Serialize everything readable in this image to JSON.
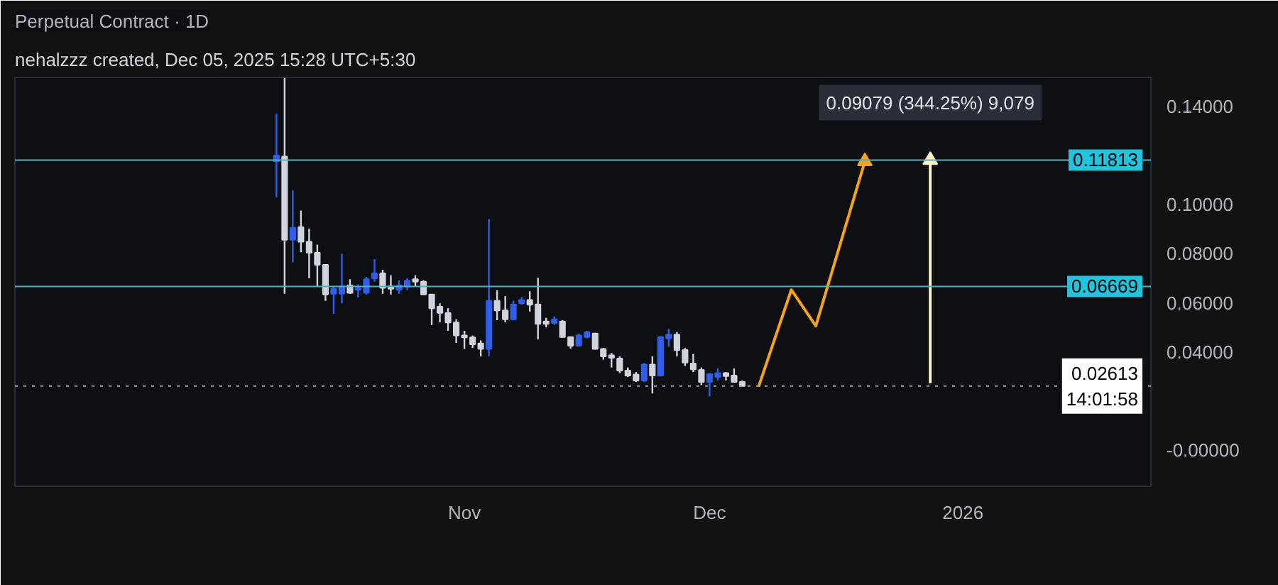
{
  "chart_data": {
    "type": "candlestick",
    "title": "Perpetual Contract · 1D",
    "annotations": [
      "nehalzzz created, Dec 05, 2025 15:28 UTC+5:30",
      "0.09079 (344.25%) 9,079"
    ],
    "x": [
      "2025-10-09",
      "2025-10-10",
      "2025-10-11",
      "2025-10-12",
      "2025-10-13",
      "2025-10-14",
      "2025-10-15",
      "2025-10-16",
      "2025-10-17",
      "2025-10-18",
      "2025-10-19",
      "2025-10-20",
      "2025-10-21",
      "2025-10-22",
      "2025-10-23",
      "2025-10-24",
      "2025-10-25",
      "2025-10-26",
      "2025-10-27",
      "2025-10-28",
      "2025-10-29",
      "2025-10-30",
      "2025-10-31",
      "2025-11-01",
      "2025-11-02",
      "2025-11-03",
      "2025-11-04",
      "2025-11-05",
      "2025-11-06",
      "2025-11-07",
      "2025-11-08",
      "2025-11-09",
      "2025-11-10",
      "2025-11-11",
      "2025-11-12",
      "2025-11-13",
      "2025-11-14",
      "2025-11-15",
      "2025-11-16",
      "2025-11-17",
      "2025-11-18",
      "2025-11-19",
      "2025-11-20",
      "2025-11-21",
      "2025-11-22",
      "2025-11-23",
      "2025-11-24",
      "2025-11-25",
      "2025-11-26",
      "2025-11-27",
      "2025-11-28",
      "2025-11-29",
      "2025-11-30",
      "2025-12-01",
      "2025-12-02",
      "2025-12-03",
      "2025-12-04",
      "2025-12-05"
    ],
    "ohlc": [
      [
        0.1176,
        0.137,
        0.103,
        0.12
      ],
      [
        0.1196,
        0.1516,
        0.0637,
        0.0857
      ],
      [
        0.0857,
        0.1059,
        0.0765,
        0.0906
      ],
      [
        0.0908,
        0.0976,
        0.0806,
        0.0849
      ],
      [
        0.0849,
        0.0902,
        0.07,
        0.0804
      ],
      [
        0.0804,
        0.0837,
        0.0667,
        0.0755
      ],
      [
        0.0755,
        0.0755,
        0.0608,
        0.0634
      ],
      [
        0.0637,
        0.0666,
        0.0555,
        0.0657
      ],
      [
        0.0637,
        0.08,
        0.0598,
        0.0667
      ],
      [
        0.0671,
        0.0696,
        0.0637,
        0.0641
      ],
      [
        0.0653,
        0.0676,
        0.0622,
        0.066
      ],
      [
        0.0641,
        0.0706,
        0.0634,
        0.0696
      ],
      [
        0.07,
        0.0778,
        0.0686,
        0.072
      ],
      [
        0.072,
        0.0735,
        0.0637,
        0.0661
      ],
      [
        0.0667,
        0.0712,
        0.0634,
        0.0657
      ],
      [
        0.0653,
        0.0692,
        0.0637,
        0.0671
      ],
      [
        0.0667,
        0.07,
        0.0653,
        0.069
      ],
      [
        0.0696,
        0.0712,
        0.0667,
        0.0686
      ],
      [
        0.0686,
        0.0692,
        0.0634,
        0.0634
      ],
      [
        0.0634,
        0.0634,
        0.051,
        0.0578
      ],
      [
        0.0584,
        0.0598,
        0.052,
        0.0559
      ],
      [
        0.0559,
        0.0578,
        0.0486,
        0.052
      ],
      [
        0.052,
        0.0533,
        0.0437,
        0.0467
      ],
      [
        0.0467,
        0.0486,
        0.0412,
        0.0459
      ],
      [
        0.0459,
        0.0467,
        0.0416,
        0.0431
      ],
      [
        0.0435,
        0.0447,
        0.0382,
        0.0412
      ],
      [
        0.0412,
        0.0941,
        0.0382,
        0.0608
      ],
      [
        0.0608,
        0.0651,
        0.0529,
        0.0569
      ],
      [
        0.0569,
        0.0627,
        0.052,
        0.0533
      ],
      [
        0.0533,
        0.0608,
        0.0529,
        0.0594
      ],
      [
        0.0598,
        0.0624,
        0.0592,
        0.0612
      ],
      [
        0.0612,
        0.0647,
        0.0565,
        0.0592
      ],
      [
        0.0594,
        0.0702,
        0.0451,
        0.0514
      ],
      [
        0.0524,
        0.0539,
        0.05,
        0.0514
      ],
      [
        0.0518,
        0.0545,
        0.051,
        0.0533
      ],
      [
        0.0524,
        0.0529,
        0.0461,
        0.0461
      ],
      [
        0.0461,
        0.0461,
        0.0414,
        0.0425
      ],
      [
        0.0425,
        0.0475,
        0.0422,
        0.0467
      ],
      [
        0.0461,
        0.0486,
        0.0455,
        0.0481
      ],
      [
        0.0475,
        0.0478,
        0.041,
        0.0412
      ],
      [
        0.0412,
        0.0416,
        0.0369,
        0.0382
      ],
      [
        0.0386,
        0.0396,
        0.0337,
        0.0376
      ],
      [
        0.0373,
        0.0382,
        0.0314,
        0.0324
      ],
      [
        0.0324,
        0.0337,
        0.0298,
        0.0304
      ],
      [
        0.0308,
        0.0318,
        0.0278,
        0.0284
      ],
      [
        0.0284,
        0.0355,
        0.0278,
        0.0349
      ],
      [
        0.0349,
        0.0382,
        0.0231,
        0.0304
      ],
      [
        0.0304,
        0.0465,
        0.0302,
        0.0461
      ],
      [
        0.0455,
        0.0494,
        0.0422,
        0.0471
      ],
      [
        0.0471,
        0.0481,
        0.0382,
        0.0408
      ],
      [
        0.0408,
        0.0416,
        0.0343,
        0.0357
      ],
      [
        0.0353,
        0.0392,
        0.0318,
        0.0329
      ],
      [
        0.0327,
        0.0337,
        0.0265,
        0.0278
      ],
      [
        0.0278,
        0.0314,
        0.0219,
        0.031
      ],
      [
        0.0298,
        0.0333,
        0.0284,
        0.0314
      ],
      [
        0.0314,
        0.0318,
        0.0284,
        0.0302
      ],
      [
        0.0304,
        0.0333,
        0.0275,
        0.0278
      ],
      [
        0.0278,
        0.0284,
        0.0261,
        0.02613
      ]
    ],
    "colors": [
      "#2f5fe8",
      "#d1d4dc",
      "#2f5fe8",
      "#d1d4dc",
      "#d1d4dc",
      "#d1d4dc",
      "#d1d4dc",
      "#2f5fe8",
      "#2f5fe8",
      "#d1d4dc",
      "#2f5fe8",
      "#2f5fe8",
      "#2f5fe8",
      "#d1d4dc",
      "#d1d4dc",
      "#2f5fe8",
      "#2f5fe8",
      "#d1d4dc",
      "#d1d4dc",
      "#d1d4dc",
      "#d1d4dc",
      "#d1d4dc",
      "#d1d4dc",
      "#d1d4dc",
      "#d1d4dc",
      "#d1d4dc",
      "#2f5fe8",
      "#d1d4dc",
      "#d1d4dc",
      "#2f5fe8",
      "#2f5fe8",
      "#d1d4dc",
      "#d1d4dc",
      "#d1d4dc",
      "#2f5fe8",
      "#d1d4dc",
      "#d1d4dc",
      "#2f5fe8",
      "#2f5fe8",
      "#d1d4dc",
      "#d1d4dc",
      "#d1d4dc",
      "#d1d4dc",
      "#d1d4dc",
      "#d1d4dc",
      "#2f5fe8",
      "#d1d4dc",
      "#2f5fe8",
      "#2f5fe8",
      "#d1d4dc",
      "#d1d4dc",
      "#d1d4dc",
      "#d1d4dc",
      "#2f5fe8",
      "#2f5fe8",
      "#d1d4dc",
      "#d1d4dc",
      "#d1d4dc"
    ],
    "series": [
      {
        "type": "line",
        "color": "#f7a21b",
        "x": [
          "2025-12-07",
          "2025-12-11",
          "2025-12-14",
          "2025-12-20"
        ],
        "values": [
          0.0259,
          0.0653,
          0.0506,
          0.1176
        ]
      },
      {
        "type": "line",
        "color": "#fff3c4",
        "x": [
          "2025-12-28",
          "2025-12-28"
        ],
        "values": [
          0.0273,
          0.1181
        ]
      }
    ],
    "ref_lines": [
      {
        "axis": "y",
        "value": 0.11813,
        "label": "0.11813",
        "color": "#4fb3bf",
        "line_style": "solid"
      },
      {
        "axis": "y",
        "value": 0.06669,
        "label": "0.06669",
        "color": "#4fb3bf",
        "line_style": "solid"
      },
      {
        "axis": "y",
        "value": 0.02613,
        "label": "0.02613\n14:01:58",
        "color": "#9e9e9e",
        "line_style": "dotted"
      }
    ],
    "xlim": [
      "2025-09-07",
      "2026-01-24"
    ],
    "xticks": [
      {
        "value": "2025-11-01",
        "label": "Nov"
      },
      {
        "value": "2025-12-01",
        "label": "Dec"
      },
      {
        "value": "2026-01-01",
        "label": "2026"
      }
    ],
    "ylim": [
      -0.0147,
      0.1518
    ],
    "yticks": [
      {
        "value": 0,
        "label": "-0.00000"
      },
      {
        "value": 0.04,
        "label": "0.04000"
      },
      {
        "value": 0.06,
        "label": "0.06000"
      },
      {
        "value": 0.08,
        "label": "0.08000"
      },
      {
        "value": 0.1,
        "label": "0.10000"
      },
      {
        "value": 0.14,
        "label": "0.14000"
      }
    ],
    "grid": false,
    "line_style": "solid"
  }
}
